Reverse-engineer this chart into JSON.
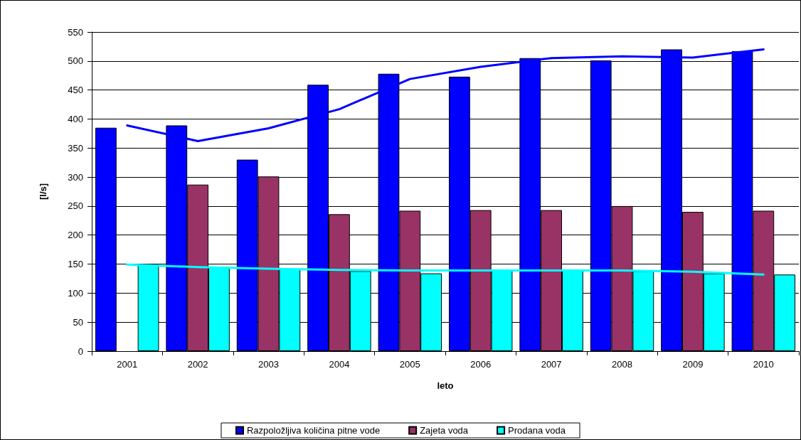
{
  "chart_data": {
    "type": "bar",
    "xlabel": "leto",
    "ylabel": "[l/s]",
    "categories": [
      "2001",
      "2002",
      "2003",
      "2004",
      "2005",
      "2006",
      "2007",
      "2008",
      "2009",
      "2010"
    ],
    "series": [
      {
        "name": "Razpoložljiva količina pitne vode",
        "color": "#0000ff",
        "values": [
          385,
          389,
          330,
          459,
          478,
          473,
          505,
          501,
          520,
          517
        ]
      },
      {
        "name": "Zajeta voda",
        "color": "#993366",
        "values": [
          null,
          287,
          301,
          236,
          242,
          243,
          243,
          250,
          240,
          242
        ]
      },
      {
        "name": "Prodana voda",
        "color": "#00ffff",
        "values": [
          149,
          145,
          142,
          138,
          134,
          139,
          139,
          138,
          134,
          132
        ]
      },
      {
        "type": "line",
        "color": "#0000ff",
        "values": [
          389,
          362,
          384,
          417,
          469,
          490,
          505,
          508,
          506,
          520
        ]
      },
      {
        "type": "line",
        "color": "#00ffff",
        "values": [
          149,
          145,
          142,
          140,
          139,
          139,
          139,
          139,
          137,
          132
        ]
      }
    ],
    "ylim": [
      0,
      550
    ],
    "yticks": [
      0,
      50,
      100,
      150,
      200,
      250,
      300,
      350,
      400,
      450,
      500,
      550
    ],
    "grid": "y",
    "legend": "bottom",
    "marker": "none",
    "line_style": "solid"
  }
}
